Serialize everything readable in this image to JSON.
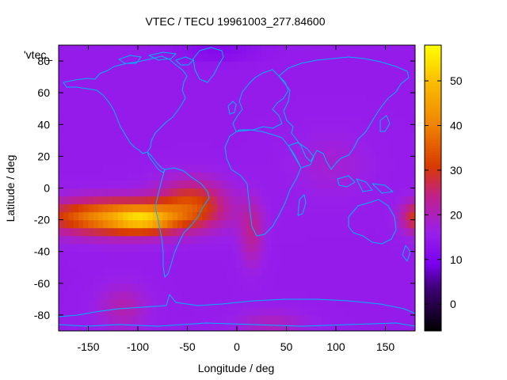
{
  "chart_data": {
    "type": "heatmap",
    "title": "VTEC / TECU 19961003_277.84600",
    "xlabel": "Longitude / deg",
    "ylabel": "Latitude / deg",
    "xlim": [
      -180,
      180
    ],
    "ylim": [
      -90,
      90
    ],
    "x_ticks": [
      -150,
      -100,
      -50,
      0,
      50,
      100,
      150
    ],
    "y_ticks": [
      80,
      60,
      40,
      20,
      0,
      -20,
      -40,
      -60,
      -80
    ],
    "colorbar": {
      "range": [
        -6,
        58
      ],
      "ticks": [
        0,
        10,
        20,
        30,
        40,
        50
      ],
      "stops": [
        {
          "value": -6,
          "color": "#000000"
        },
        {
          "value": 4,
          "color": "#40007a"
        },
        {
          "value": 9,
          "color": "#7a00ee"
        },
        {
          "value": 16,
          "color": "#9920ea"
        },
        {
          "value": 24,
          "color": "#c0208e"
        },
        {
          "value": 31,
          "color": "#d83a00"
        },
        {
          "value": 40,
          "color": "#ef8200"
        },
        {
          "value": 50,
          "color": "#fbbe00"
        },
        {
          "value": 58,
          "color": "#ffff00"
        }
      ]
    },
    "legend_entry": "'vtec_",
    "overlay": "coastlines",
    "background_tec": 15,
    "anomalies": [
      {
        "name": "equatorial-anomaly-pacific",
        "lon": -120,
        "lat": -18,
        "dlon": 75,
        "dlat": 11,
        "amp": 28
      },
      {
        "name": "equatorial-anomaly-peak",
        "lon": -95,
        "lat": -20,
        "dlon": 28,
        "dlat": 7,
        "amp": 14
      },
      {
        "name": "equatorial-anomaly-america",
        "lon": -45,
        "lat": -8,
        "dlon": 35,
        "dlat": 14,
        "amp": 14
      },
      {
        "name": "atlantic-tail",
        "lon": 15,
        "lat": -28,
        "dlon": 12,
        "dlat": 20,
        "amp": 8
      },
      {
        "name": "east-edge-anomaly",
        "lon": 182,
        "lat": -18,
        "dlon": 16,
        "dlat": 10,
        "amp": 16
      },
      {
        "name": "asia-lowlat",
        "lon": 95,
        "lat": 15,
        "dlon": 40,
        "dlat": 20,
        "amp": 3
      },
      {
        "name": "south-pacific-southern",
        "lon": -115,
        "lat": -75,
        "dlon": 25,
        "dlat": 14,
        "amp": 6
      },
      {
        "name": "antarctic-south",
        "lon": 35,
        "lat": -85,
        "dlon": 35,
        "dlat": 8,
        "amp": 5
      },
      {
        "name": "arctic-low",
        "lon": -20,
        "lat": 86,
        "dlon": 40,
        "dlat": 6,
        "amp": -4
      }
    ]
  }
}
